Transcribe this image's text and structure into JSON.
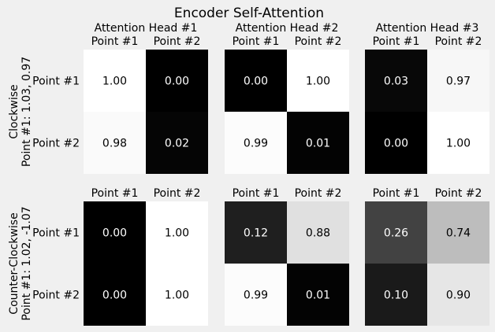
{
  "title": "Encoder Self-Attention",
  "colors": {
    "background": "#f0f0f0",
    "text": "#000000",
    "cmap_low": "#000000",
    "cmap_high": "#ffffff"
  },
  "chart_data": {
    "type": "heatmap",
    "title": "Encoder Self-Attention",
    "colormap": "grayscale (0.00 = black, 1.00 = white)",
    "value_format": "2 decimals",
    "column_titles": [
      "Attention Head #1",
      "Attention Head #2",
      "Attention Head #3"
    ],
    "row_titles": [
      "Clockwise\nPoint #1: 1.03, 0.97",
      "Counter-Clockwise\nPoint #1: 1.02, -1.07"
    ],
    "x_tick_labels": [
      "Point #1",
      "Point #2"
    ],
    "y_tick_labels": [
      "Point #1",
      "Point #2"
    ],
    "panels": [
      [
        {
          "head": "Attention Head #1",
          "values": [
            [
              1.0,
              0.0
            ],
            [
              0.98,
              0.02
            ]
          ]
        },
        {
          "head": "Attention Head #2",
          "values": [
            [
              0.0,
              1.0
            ],
            [
              0.99,
              0.01
            ]
          ]
        },
        {
          "head": "Attention Head #3",
          "values": [
            [
              0.03,
              0.97
            ],
            [
              0.0,
              1.0
            ]
          ]
        }
      ],
      [
        {
          "head": "Attention Head #1",
          "values": [
            [
              0.0,
              1.0
            ],
            [
              0.0,
              1.0
            ]
          ]
        },
        {
          "head": "Attention Head #2",
          "values": [
            [
              0.12,
              0.88
            ],
            [
              0.99,
              0.01
            ]
          ]
        },
        {
          "head": "Attention Head #3",
          "values": [
            [
              0.26,
              0.74
            ],
            [
              0.1,
              0.9
            ]
          ]
        }
      ]
    ]
  }
}
